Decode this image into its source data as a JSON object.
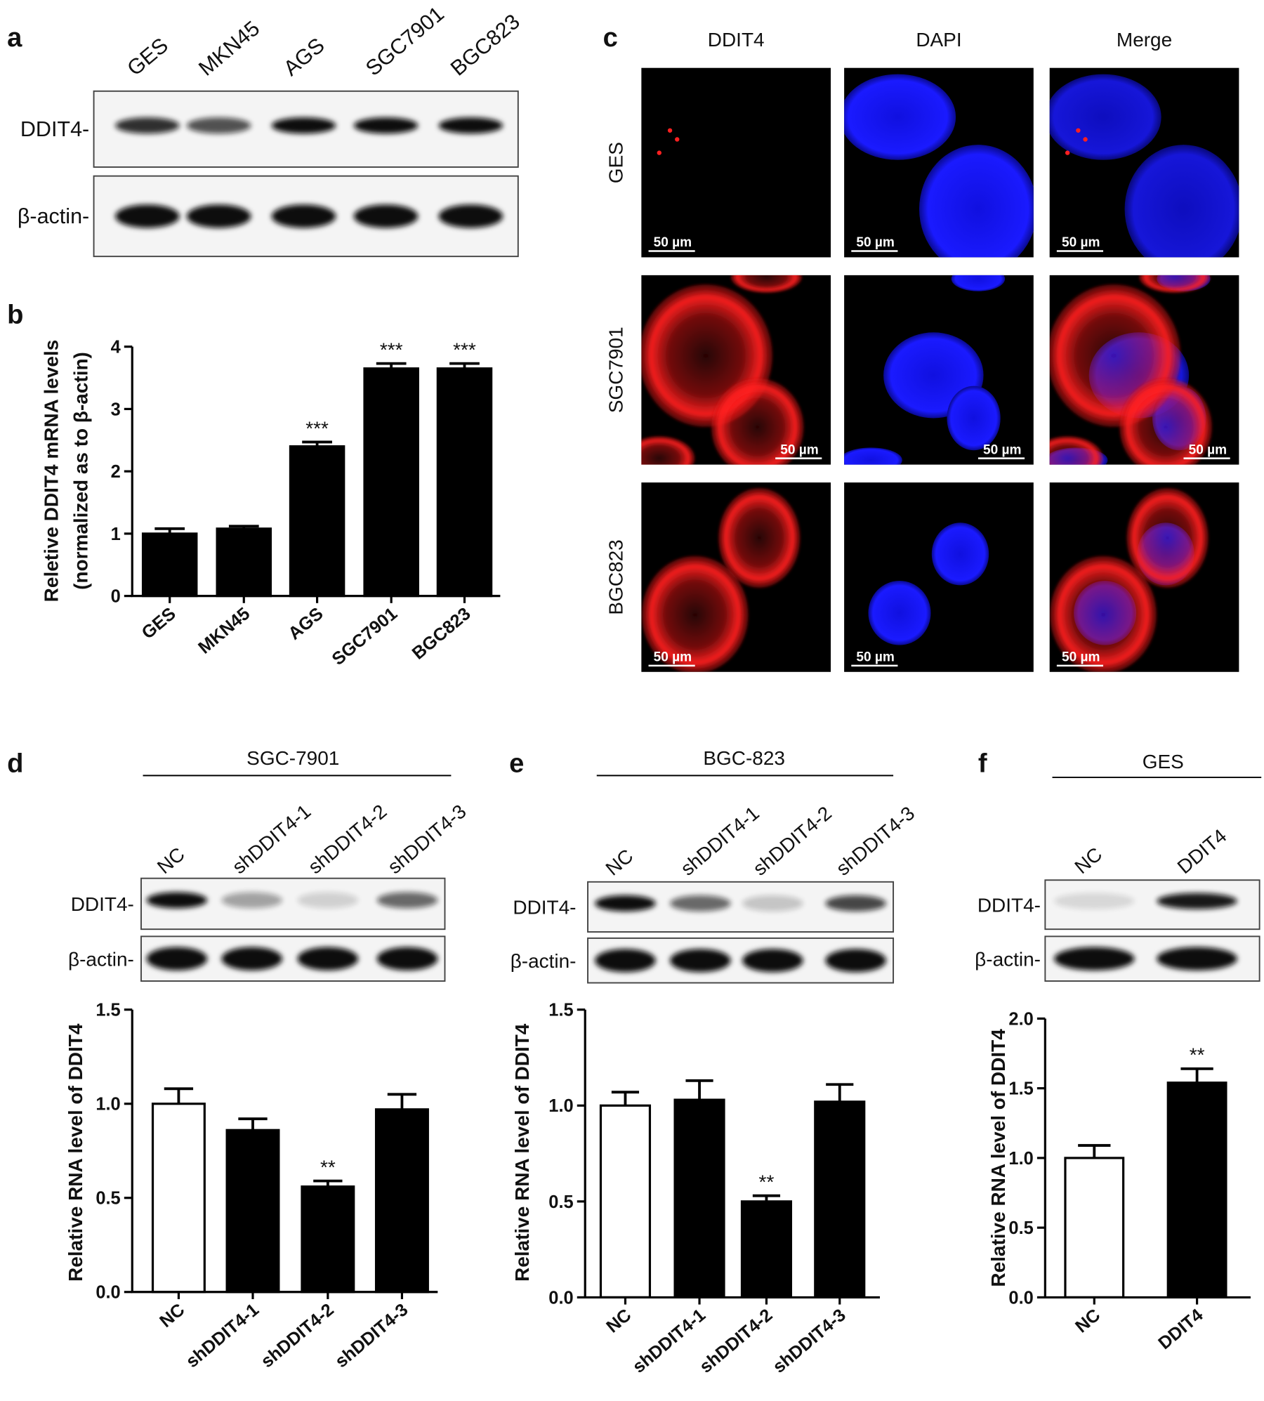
{
  "panel_labels": [
    "a",
    "b",
    "c",
    "d",
    "e",
    "f"
  ],
  "blots": [
    {
      "lanes": [
        "GES",
        "MKN45",
        "AGS",
        "SGC7901",
        "BGC823"
      ],
      "rows": [
        "DDIT4-",
        "β-actin-"
      ]
    },
    {
      "title": "SGC-7901",
      "lanes": [
        "NC",
        "shDDIT4-1",
        "shDDIT4-2",
        "shDDIT4-3"
      ],
      "rows": [
        "DDIT4-",
        "β-actin-"
      ]
    },
    {
      "title": "BGC-823",
      "lanes": [
        "NC",
        "shDDIT4-1",
        "shDDIT4-2",
        "shDDIT4-3"
      ],
      "rows": [
        "DDIT4-",
        "β-actin-"
      ]
    },
    {
      "title": "GES",
      "lanes": [
        "NC",
        "DDIT4"
      ],
      "rows": [
        "DDIT4-",
        "β-actin-"
      ]
    }
  ],
  "microscopy": {
    "columns": [
      "DDIT4",
      "DAPI",
      "Merge"
    ],
    "rows": [
      "GES",
      "SGC7901",
      "BGC823"
    ],
    "scale_bar": "50 µm"
  },
  "chart_data": [
    {
      "type": "bar",
      "ylabel": [
        "Reletive DDIT4 mRNA levels",
        "(normalized as to β-actin)"
      ],
      "categories": [
        "GES",
        "MKN45",
        "AGS",
        "SGC7901",
        "BGC823"
      ],
      "values": [
        1.0,
        1.08,
        2.4,
        3.65,
        3.65
      ],
      "errors": [
        0.08,
        0.04,
        0.07,
        0.08,
        0.08
      ],
      "significance": [
        null,
        null,
        "***",
        "***",
        "***"
      ],
      "colors": [
        "#000000",
        "#000000",
        "#000000",
        "#000000",
        "#000000"
      ],
      "ylim": [
        0,
        4
      ],
      "yticks": [
        0,
        1,
        2,
        3,
        4
      ]
    },
    {
      "type": "bar",
      "ylabel": "Relative RNA level of DDIT4",
      "categories": [
        "NC",
        "shDDIT4-1",
        "shDDIT4-2",
        "shDDIT4-3"
      ],
      "values": [
        1.0,
        0.86,
        0.56,
        0.97
      ],
      "errors": [
        0.08,
        0.06,
        0.03,
        0.08
      ],
      "significance": [
        null,
        null,
        "**",
        null
      ],
      "colors": [
        "#ffffff",
        "#000000",
        "#000000",
        "#000000"
      ],
      "ylim": [
        0,
        1.5
      ],
      "yticks": [
        {
          "value": 0,
          "label": "0.0"
        },
        0.5,
        {
          "value": 1,
          "label": "1.0"
        },
        1.5
      ]
    },
    {
      "type": "bar",
      "ylabel": "Relative RNA level of DDIT4",
      "categories": [
        "NC",
        "shDDIT4-1",
        "shDDIT4-2",
        "shDDIT4-3"
      ],
      "values": [
        1.0,
        1.03,
        0.5,
        1.02
      ],
      "errors": [
        0.07,
        0.1,
        0.03,
        0.09
      ],
      "significance": [
        null,
        null,
        "**",
        null
      ],
      "colors": [
        "#ffffff",
        "#000000",
        "#000000",
        "#000000"
      ],
      "ylim": [
        0,
        1.5
      ],
      "yticks": [
        {
          "value": 0,
          "label": "0.0"
        },
        0.5,
        {
          "value": 1,
          "label": "1.0"
        },
        1.5
      ]
    },
    {
      "type": "bar",
      "ylabel": "Relative RNA level of DDIT4",
      "categories": [
        "NC",
        "DDIT4"
      ],
      "values": [
        1.0,
        1.54
      ],
      "errors": [
        0.09,
        0.1
      ],
      "significance": [
        null,
        "**"
      ],
      "colors": [
        "#ffffff",
        "#000000"
      ],
      "ylim": [
        0,
        2
      ],
      "yticks": [
        {
          "value": 0,
          "label": "0.0"
        },
        0.5,
        {
          "value": 1,
          "label": "1.0"
        },
        1.5,
        {
          "value": 2,
          "label": "2.0"
        }
      ]
    }
  ]
}
